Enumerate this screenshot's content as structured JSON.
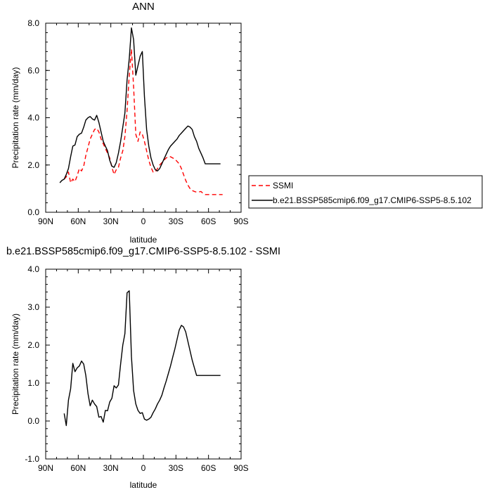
{
  "chart_data": [
    {
      "type": "line",
      "title": "ANN",
      "xlabel": "latitude",
      "ylabel": "Precipitation rate (mm/day)",
      "x_ticks": [
        {
          "value": 90,
          "label": "90N"
        },
        {
          "value": 60,
          "label": "60N"
        },
        {
          "value": 30,
          "label": "30N"
        },
        {
          "value": 0,
          "label": "0"
        },
        {
          "value": -30,
          "label": "30S"
        },
        {
          "value": -60,
          "label": "60S"
        },
        {
          "value": -90,
          "label": "90S"
        }
      ],
      "x_direction": "north-to-south",
      "y_ticks": [
        {
          "value": 0,
          "label": "0.0"
        },
        {
          "value": 2,
          "label": "2.0"
        },
        {
          "value": 4,
          "label": "4.0"
        },
        {
          "value": 6,
          "label": "6.0"
        },
        {
          "value": 8,
          "label": "8.0"
        }
      ],
      "xlim": [
        90,
        -90
      ],
      "ylim": [
        0,
        8
      ],
      "legend_position": "right",
      "series": [
        {
          "name": "SSMI",
          "color": "#ff0000",
          "dash": "dashed",
          "x": [
            73,
            71,
            69,
            67,
            65,
            63,
            61,
            59,
            57,
            55,
            53,
            51,
            49,
            47,
            45,
            43,
            41,
            39,
            37,
            35,
            33,
            31,
            29,
            27,
            25,
            23,
            21,
            19,
            17,
            15,
            13,
            11,
            9,
            7,
            5,
            3,
            1,
            -1,
            -3,
            -5,
            -7,
            -9,
            -11,
            -13,
            -15,
            -17,
            -19,
            -21,
            -23,
            -25,
            -27,
            -29,
            -31,
            -33,
            -35,
            -37,
            -39,
            -41,
            -43,
            -45,
            -47,
            -49,
            -51,
            -53,
            -55,
            -57,
            -59,
            -61,
            -63,
            -65,
            -67,
            -69,
            -71,
            -73
          ],
          "y": [
            1.4,
            1.5,
            1.7,
            1.25,
            1.4,
            1.3,
            1.55,
            1.85,
            1.75,
            1.95,
            2.4,
            2.75,
            3.1,
            3.3,
            3.5,
            3.55,
            3.4,
            3.1,
            2.9,
            2.7,
            2.5,
            2.3,
            1.9,
            1.6,
            1.8,
            1.9,
            2.3,
            2.6,
            3.2,
            4.3,
            5.8,
            6.9,
            5.3,
            3.3,
            3.0,
            3.4,
            3.3,
            3.0,
            2.6,
            2.2,
            1.9,
            1.7,
            1.7,
            1.85,
            2.0,
            2.1,
            2.2,
            2.3,
            2.35,
            2.35,
            2.3,
            2.25,
            2.15,
            2.05,
            1.85,
            1.6,
            1.35,
            1.15,
            1.0,
            0.92,
            0.88,
            0.85,
            0.86,
            0.88,
            0.8,
            0.75,
            0.75,
            0.75,
            0.75,
            0.75,
            0.75,
            0.75,
            0.75,
            0.75
          ]
        },
        {
          "name": "b.e21.BSSP585cmip6.f09_g17.CMIP6-SSP5-8.5.102",
          "color": "#000000",
          "dash": "solid",
          "x": [
            77,
            75,
            73,
            71,
            69,
            67,
            65,
            63,
            61,
            59,
            57,
            55,
            53,
            51,
            49,
            47,
            45,
            43,
            41,
            39,
            37,
            35,
            33,
            31,
            29,
            27,
            25,
            23,
            21,
            19,
            17,
            15,
            13,
            11,
            9,
            7,
            5,
            3,
            1,
            -1,
            -3,
            -5,
            -7,
            -9,
            -11,
            -13,
            -15,
            -17,
            -19,
            -21,
            -23,
            -25,
            -27,
            -29,
            -31,
            -33,
            -35,
            -37,
            -39,
            -41,
            -43,
            -45,
            -47,
            -49,
            -51,
            -53,
            -55,
            -57,
            -59,
            -61,
            -63,
            -65,
            -67,
            -69,
            -71
          ],
          "y": [
            1.25,
            1.35,
            1.4,
            1.6,
            1.85,
            2.35,
            2.8,
            2.85,
            3.2,
            3.3,
            3.35,
            3.6,
            3.9,
            4.0,
            4.05,
            3.95,
            3.9,
            4.1,
            3.8,
            3.4,
            3.0,
            2.8,
            2.6,
            2.2,
            1.95,
            1.9,
            2.1,
            2.5,
            3.0,
            3.6,
            4.2,
            5.6,
            6.5,
            7.8,
            7.3,
            5.8,
            6.2,
            6.6,
            6.8,
            4.9,
            3.5,
            2.8,
            2.3,
            2.0,
            1.8,
            1.75,
            1.85,
            2.05,
            2.25,
            2.45,
            2.65,
            2.8,
            2.9,
            3.0,
            3.1,
            3.25,
            3.35,
            3.45,
            3.55,
            3.65,
            3.6,
            3.5,
            3.2,
            3.0,
            2.7,
            2.5,
            2.3,
            2.05,
            2.05,
            2.05,
            2.05,
            2.05,
            2.05,
            2.05,
            2.05
          ]
        }
      ]
    },
    {
      "type": "line",
      "title": "b.e21.BSSP585cmip6.f09_g17.CMIP6-SSP5-8.5.102 - SSMI",
      "xlabel": "latitude",
      "ylabel": "Precipitation rate (mm/day)",
      "x_ticks": [
        {
          "value": 90,
          "label": "90N"
        },
        {
          "value": 60,
          "label": "60N"
        },
        {
          "value": 30,
          "label": "30N"
        },
        {
          "value": 0,
          "label": "0"
        },
        {
          "value": -30,
          "label": "30S"
        },
        {
          "value": -60,
          "label": "60S"
        },
        {
          "value": -90,
          "label": "90S"
        }
      ],
      "x_direction": "north-to-south",
      "y_ticks": [
        {
          "value": -1,
          "label": "-1.0"
        },
        {
          "value": 0,
          "label": "0.0"
        },
        {
          "value": 1,
          "label": "1.0"
        },
        {
          "value": 2,
          "label": "2.0"
        },
        {
          "value": 3,
          "label": "3.0"
        },
        {
          "value": 4,
          "label": "4.0"
        }
      ],
      "xlim": [
        90,
        -90
      ],
      "ylim": [
        -1,
        4
      ],
      "series": [
        {
          "color": "#000000",
          "dash": "solid",
          "x": [
            73,
            71,
            69,
            67,
            65,
            63,
            61,
            59,
            57,
            55,
            53,
            51,
            49,
            47,
            45,
            43,
            41,
            39,
            37,
            35,
            33,
            31,
            29,
            27,
            25,
            23,
            21,
            19,
            17,
            15,
            13,
            11,
            9,
            7,
            5,
            3,
            1,
            -1,
            -3,
            -5,
            -7,
            -9,
            -11,
            -13,
            -15,
            -17,
            -19,
            -21,
            -23,
            -25,
            -27,
            -29,
            -31,
            -33,
            -35,
            -37,
            -39,
            -41,
            -43,
            -45,
            -47,
            -49,
            -51,
            -53,
            -55,
            -57,
            -59,
            -61,
            -63,
            -65,
            -67,
            -69,
            -71
          ],
          "y": [
            0.2,
            -0.12,
            0.55,
            0.85,
            1.52,
            1.3,
            1.4,
            1.45,
            1.58,
            1.5,
            1.2,
            0.72,
            0.4,
            0.55,
            0.45,
            0.38,
            0.1,
            0.12,
            -0.03,
            0.28,
            0.27,
            0.5,
            0.6,
            0.93,
            0.87,
            0.95,
            1.5,
            2.0,
            2.3,
            3.38,
            3.43,
            1.7,
            0.8,
            0.45,
            0.28,
            0.2,
            0.22,
            0.05,
            0.02,
            0.05,
            0.1,
            0.22,
            0.32,
            0.45,
            0.55,
            0.68,
            0.87,
            1.05,
            1.25,
            1.45,
            1.68,
            1.9,
            2.15,
            2.4,
            2.52,
            2.48,
            2.35,
            2.1,
            1.85,
            1.6,
            1.4,
            1.2,
            1.2,
            1.2,
            1.2,
            1.2,
            1.2,
            1.2,
            1.2,
            1.2,
            1.2,
            1.2,
            1.2
          ]
        }
      ]
    }
  ]
}
